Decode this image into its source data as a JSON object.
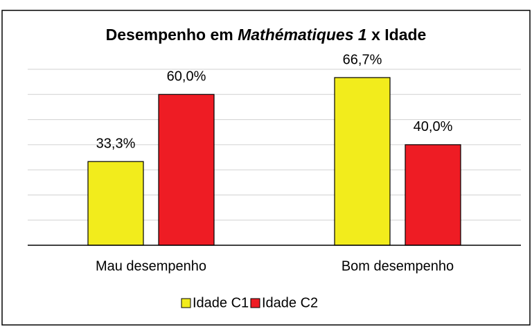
{
  "chart_data": {
    "type": "bar",
    "title": [
      {
        "text": "Desempenho em "
      },
      {
        "text": "Mathématiques 1",
        "italic": true
      },
      {
        "text": " x Idade"
      }
    ],
    "categories": [
      "Mau desempenho",
      "Bom desempenho"
    ],
    "series": [
      {
        "name": "Idade C1",
        "color": "#f2ec1c",
        "values": [
          33.3,
          66.7
        ],
        "value_labels": [
          "33,3%",
          "66,7%"
        ]
      },
      {
        "name": "Idade C2",
        "color": "#ee1c24",
        "values": [
          60.0,
          40.0
        ],
        "value_labels": [
          "60,0%",
          "40,0%"
        ]
      }
    ],
    "ylim": [
      0,
      70
    ],
    "yticks": [
      0,
      10,
      20,
      30,
      40,
      50,
      60,
      70
    ],
    "grid": true,
    "legend": "bottom"
  }
}
